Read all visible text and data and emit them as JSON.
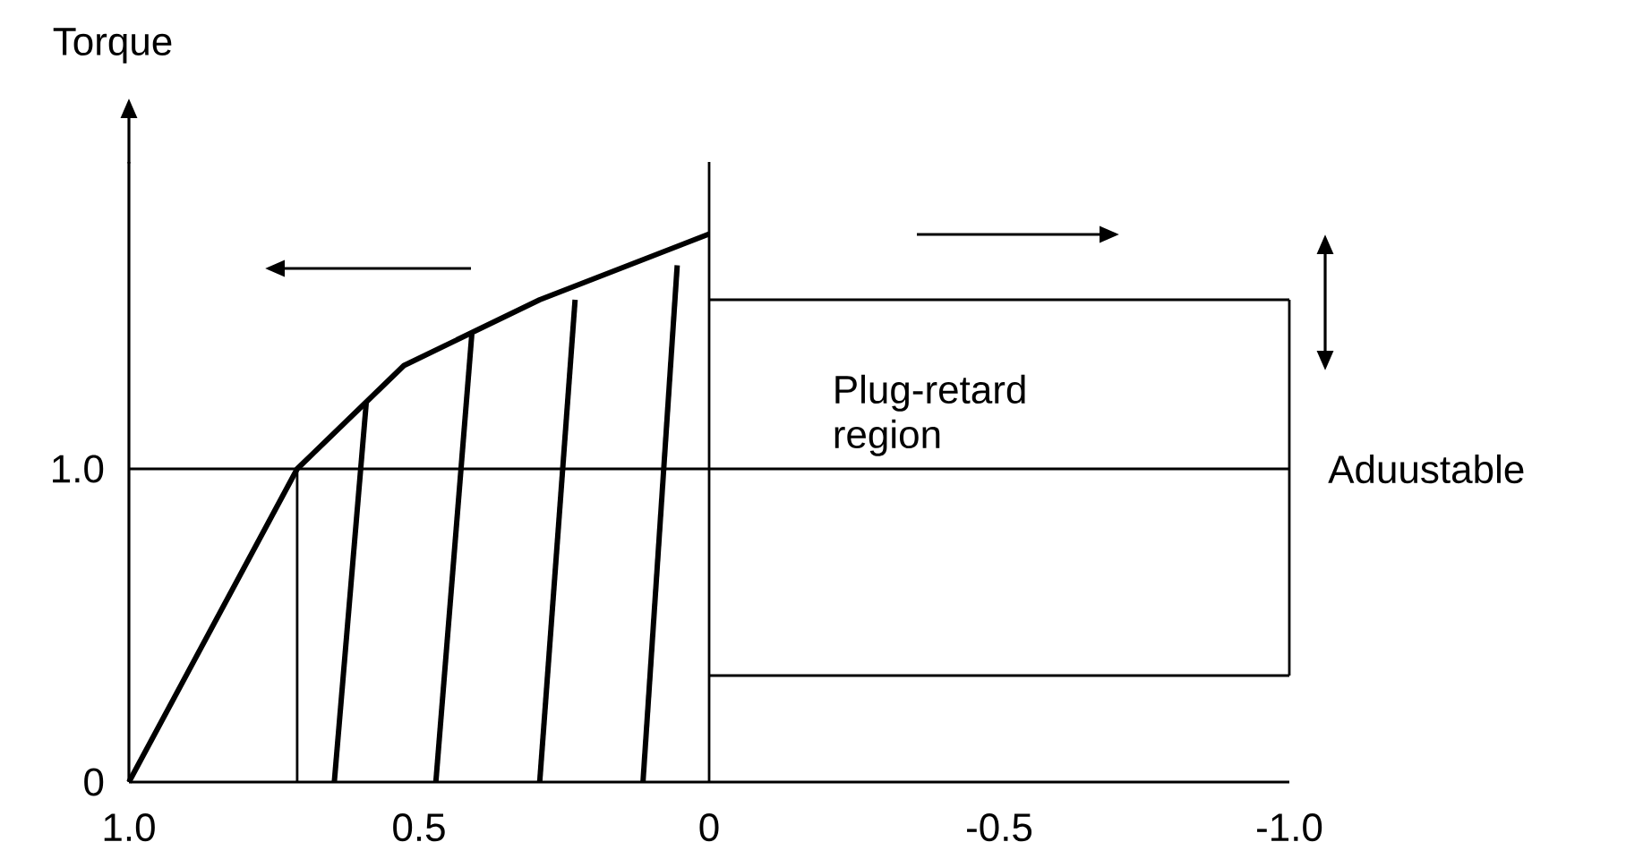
{
  "chart_data": {
    "type": "line",
    "ylabel": "Torque",
    "xlim": [
      1.0,
      -1.0
    ],
    "ylim": [
      0,
      1.98
    ],
    "xticks": [
      {
        "value": 1,
        "label": "1.0"
      },
      0.5,
      0,
      -0.5,
      {
        "value": -1,
        "label": "-1.0"
      }
    ],
    "yticks": [
      0,
      {
        "value": 1,
        "label": "1.0"
      }
    ],
    "marker": "none",
    "series": [
      {
        "color": "#000000",
        "x": [
          1.0,
          0.71,
          0.526,
          0.292,
          0
        ],
        "values": [
          0,
          1.0,
          1.33,
          1.54,
          1.75
        ]
      },
      {
        "color": "#000000",
        "x": [
          0.646,
          0.591
        ],
        "values": [
          0,
          1.21
        ]
      },
      {
        "color": "#000000",
        "x": [
          0.471,
          0.409
        ],
        "values": [
          0,
          1.43
        ]
      },
      {
        "color": "#000000",
        "x": [
          0.292,
          0.231
        ],
        "values": [
          0,
          1.54
        ]
      },
      {
        "color": "#000000",
        "x": [
          0.114,
          0.055
        ],
        "values": [
          0,
          1.65
        ]
      },
      {
        "color": "#000000",
        "line_style": "solid",
        "x": [
          0.71,
          0.71
        ],
        "values": [
          0,
          1.0
        ]
      },
      {
        "color": "#000000",
        "line_style": "solid",
        "x": [
          0,
          -1.0
        ],
        "values": [
          1.54,
          1.54
        ]
      },
      {
        "color": "#000000",
        "line_style": "solid",
        "x": [
          -1.0,
          -1.0
        ],
        "values": [
          0.34,
          1.54
        ]
      },
      {
        "color": "#000000",
        "line_style": "solid",
        "x": [
          0,
          -1.0
        ],
        "values": [
          0.34,
          0.34
        ]
      }
    ],
    "ref_lines": [
      {
        "axis": "y",
        "value": 1.0
      },
      {
        "axis": "x",
        "value": 0
      }
    ],
    "annotations": [
      "Plug-retard region",
      "Aduustable"
    ]
  }
}
